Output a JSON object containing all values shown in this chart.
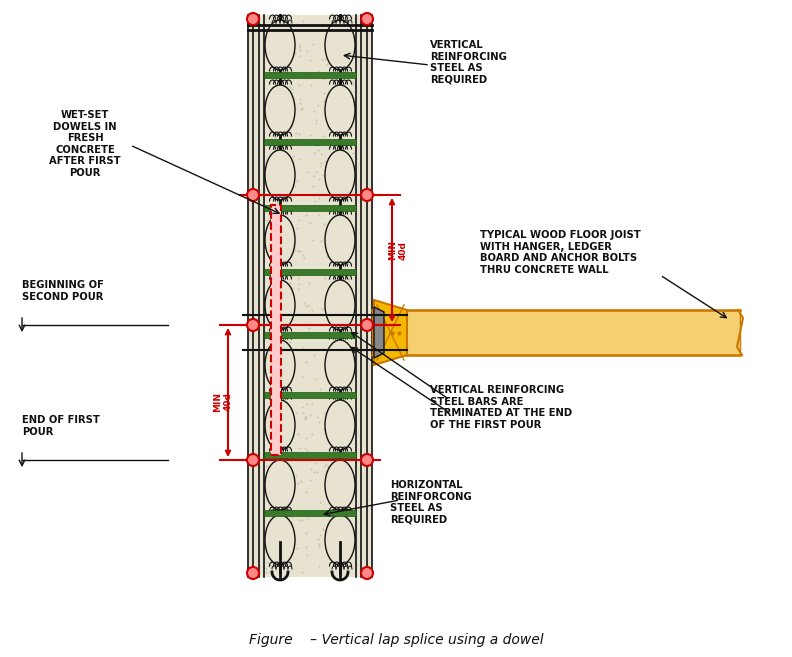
{
  "title": "Figure    – Vertical lap splice using a dowel",
  "bg_color": "#ffffff",
  "concrete_color": "#e8e3d0",
  "steel_color": "#111111",
  "green_color": "#3a7a2a",
  "red_color": "#cc0000",
  "orange_color": "#cc7700",
  "orange_fill": "#f5b800",
  "fig_width": 7.92,
  "fig_height": 6.57,
  "labels": {
    "wet_set": "WET-SET\nDOWELS IN\nFRESH\nCONCRETE\nAFTER FIRST\nPOUR",
    "beg_second": "BEGINNING OF\nSECOND POUR",
    "end_first": "END OF FIRST\nPOUR",
    "vert_steel_top": "VERTICAL\nREINFORCING\nSTEEL AS\nREQUIRED",
    "wood_joist": "TYPICAL WOOD FLOOR JOIST\nWITH HANGER, LEDGER\nBOARD AND ANCHOR BOLTS\nTHRU CONCRETE WALL",
    "vert_steel_bot": "VERTICAL REINFORCING\nSTEEL BARS ARE\nTERMINATED AT THE END\nOF THE FIRST POUR",
    "horiz_steel": "HORIZONTAL\nREINFORCONG\nSTEEL AS\nREQUIRED",
    "min40d_top": "MIN\n40d",
    "min40d_bot": "MIN\n40d"
  }
}
